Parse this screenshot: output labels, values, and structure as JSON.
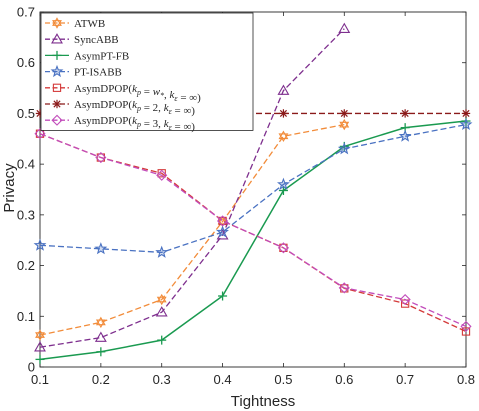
{
  "chart_data": {
    "type": "line",
    "xlabel": "Tightness",
    "ylabel": "Privacy",
    "xlim": [
      0.1,
      0.8
    ],
    "ylim": [
      0,
      0.7
    ],
    "xticks": [
      0.1,
      0.2,
      0.3,
      0.4,
      0.5,
      0.6,
      0.7,
      0.8
    ],
    "xtick_labels": [
      "0.1",
      "0.2",
      "0.3",
      "0.4",
      "0.5",
      "0.6",
      "0.7",
      "0.8"
    ],
    "yticks": [
      0,
      0.1,
      0.2,
      0.3,
      0.4,
      0.5,
      0.6,
      0.7
    ],
    "ytick_labels": [
      "0",
      "0.1",
      "0.2",
      "0.3",
      "0.4",
      "0.5",
      "0.6",
      "0.7"
    ],
    "legend_position": "top-left",
    "series": [
      {
        "name": "ATWB",
        "color": "#f28c3a",
        "dash": "dashed",
        "marker": "hexagram",
        "x": [
          0.1,
          0.2,
          0.3,
          0.4,
          0.5,
          0.6
        ],
        "y": [
          0.063,
          0.088,
          0.133,
          0.287,
          0.455,
          0.478
        ]
      },
      {
        "name": "SyncABB",
        "color": "#7e2f8e",
        "dash": "dashed",
        "marker": "triangle",
        "x": [
          0.1,
          0.2,
          0.3,
          0.4,
          0.5,
          0.6
        ],
        "y": [
          0.039,
          0.058,
          0.108,
          0.26,
          0.545,
          0.667
        ]
      },
      {
        "name": "AsymPT-FB",
        "color": "#1a9a50",
        "dash": "solid",
        "marker": "plus",
        "x": [
          0.1,
          0.2,
          0.3,
          0.4,
          0.5,
          0.6,
          0.7,
          0.8
        ],
        "y": [
          0.015,
          0.03,
          0.053,
          0.14,
          0.348,
          0.435,
          0.472,
          0.485
        ]
      },
      {
        "name": "PT-ISABB",
        "color": "#4a72c2",
        "dash": "dashed",
        "marker": "star",
        "x": [
          0.1,
          0.2,
          0.3,
          0.4,
          0.5,
          0.6,
          0.7,
          0.8
        ],
        "y": [
          0.24,
          0.233,
          0.226,
          0.266,
          0.36,
          0.43,
          0.455,
          0.478
        ]
      },
      {
        "name": "AsymDPOP(k_p = w*, k_ε = ∞)",
        "color": "#d43a3a",
        "dash": "dashed",
        "marker": "square",
        "x": [
          0.1,
          0.2,
          0.3,
          0.4,
          0.5,
          0.6,
          0.7,
          0.8
        ],
        "y": [
          0.46,
          0.413,
          0.382,
          0.288,
          0.235,
          0.155,
          0.125,
          0.07
        ]
      },
      {
        "name": "AsymDPOP(k_p = 2, k_ε = ∞)",
        "color": "#8b1a1a",
        "dash": "dashed",
        "marker": "asterisk",
        "x": [
          0.1,
          0.2,
          0.3,
          0.4,
          0.5,
          0.6,
          0.7,
          0.8
        ],
        "y": [
          0.5,
          0.5,
          0.5,
          0.5,
          0.5,
          0.5,
          0.5,
          0.5
        ]
      },
      {
        "name": "AsymDPOP(k_p = 3, k_ε = ∞)",
        "color": "#c24dbb",
        "dash": "dashed",
        "marker": "diamond",
        "x": [
          0.1,
          0.2,
          0.3,
          0.4,
          0.5,
          0.6,
          0.7,
          0.8
        ],
        "y": [
          0.46,
          0.413,
          0.378,
          0.288,
          0.235,
          0.156,
          0.133,
          0.08
        ]
      }
    ]
  },
  "legend_labels": [
    {
      "main": "ATWB"
    },
    {
      "main": "SyncABB"
    },
    {
      "main": "AsymPT-FB"
    },
    {
      "main": "PT-ISABB"
    },
    {
      "main": "AsymDPOP(",
      "math": [
        [
          "k",
          "p"
        ],
        " = ",
        [
          "w",
          "*"
        ],
        ", ",
        [
          "k",
          "ε"
        ],
        " = ∞"
      ],
      "tail": ")"
    },
    {
      "main": "AsymDPOP(",
      "math": [
        [
          "k",
          "p"
        ],
        " = 2, ",
        [
          "k",
          "ε"
        ],
        " = ∞"
      ],
      "tail": ")"
    },
    {
      "main": "AsymDPOP(",
      "math": [
        [
          "k",
          "p"
        ],
        " = 3, ",
        [
          "k",
          "ε"
        ],
        " = ∞"
      ],
      "tail": ")"
    }
  ]
}
